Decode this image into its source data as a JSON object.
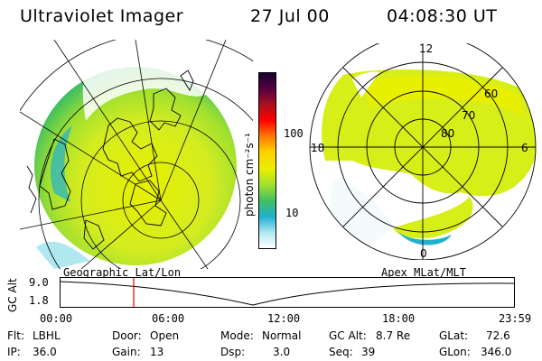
{
  "header": {
    "instrument": "Ultraviolet Imager",
    "date": "27 Jul 00",
    "time": "04:08:30 UT"
  },
  "colorbar": {
    "unit": "photon cm⁻²s⁻¹",
    "tick_high": "100",
    "tick_low": "10",
    "colors": [
      "#1a0030",
      "#550040",
      "#aa1020",
      "#ff0000",
      "#ff7800",
      "#ffd000",
      "#e8f000",
      "#a0e030",
      "#40c060",
      "#20b0d0",
      "#b0e8f0",
      "#ffffff"
    ]
  },
  "panels": {
    "left_title": "Geographic Lat/Lon",
    "right_title": "Apex MLat/MLT",
    "mlt_labels": {
      "top": "12",
      "left": "18",
      "right": "6",
      "bottom": "0"
    },
    "mlat_labels": [
      "60",
      "70",
      "80"
    ]
  },
  "altitude_plot": {
    "ylabel": "GC Alt",
    "ticks": [
      "9.0",
      "1.8"
    ],
    "time_labels": [
      "00:00",
      "06:00",
      "12:00",
      "18:00",
      "23:59"
    ],
    "current_time": "04:08:30"
  },
  "info": {
    "flt_label": "Flt:",
    "flt_value": "LBHL",
    "ip_label": "IP:",
    "ip_value": "36.0",
    "door_label": "Door:",
    "door_value": "Open",
    "gain_label": "Gain:",
    "gain_value": "13",
    "mode_label": "Mode:",
    "mode_value": "Normal",
    "dsp_label": "Dsp:",
    "dsp_value": "3.0",
    "gcalt_label": "GC Alt:",
    "gcalt_value": "8.7 Re",
    "seq_label": "Seq:",
    "seq_value": "39",
    "glat_label": "GLat:",
    "glat_value": "72.6",
    "glon_label": "GLon:",
    "glon_value": "346.0"
  }
}
